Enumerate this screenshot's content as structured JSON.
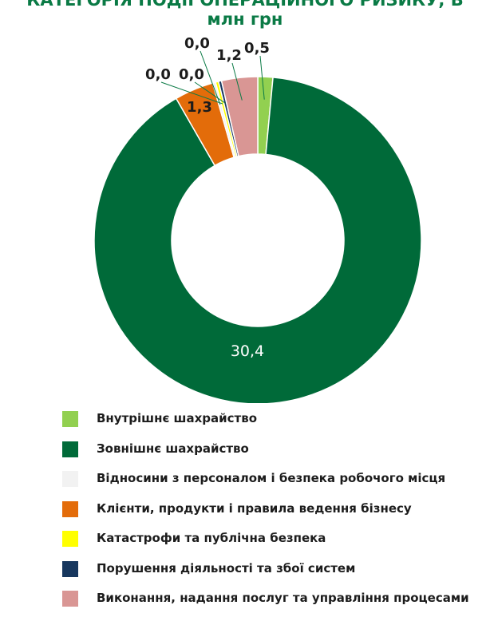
{
  "chart_data": {
    "type": "pie",
    "title": [
      "КАТЕГОРІЯ ПОДІЇ ОПЕРАЦІЙНОГО РИЗИКУ, В",
      "млн грн"
    ],
    "categories": [
      "Внутрішнє шахрайство",
      "Зовнішнє шахрайство",
      "Відносини з персоналом і безпека робочого місця",
      "Клієнти, продукти і правила ведення бізнесу",
      "Катастрофи та публічна безпека",
      "Порушення діяльності та збої систем",
      "Виконання, надання послуг та управління процесами"
    ],
    "values": [
      0.5,
      30.4,
      0.0,
      1.3,
      0.0,
      0.0,
      1.2
    ],
    "value_labels": [
      "0,5",
      "30,4",
      "0,0",
      "1,3",
      "0,0",
      "0,0",
      "1,2"
    ],
    "colors": [
      "#92d050",
      "#006a39",
      "#f2f2f2",
      "#e36c0a",
      "#ffff00",
      "#17375e",
      "#d99694"
    ],
    "donut": true,
    "legend_position": "bottom"
  }
}
